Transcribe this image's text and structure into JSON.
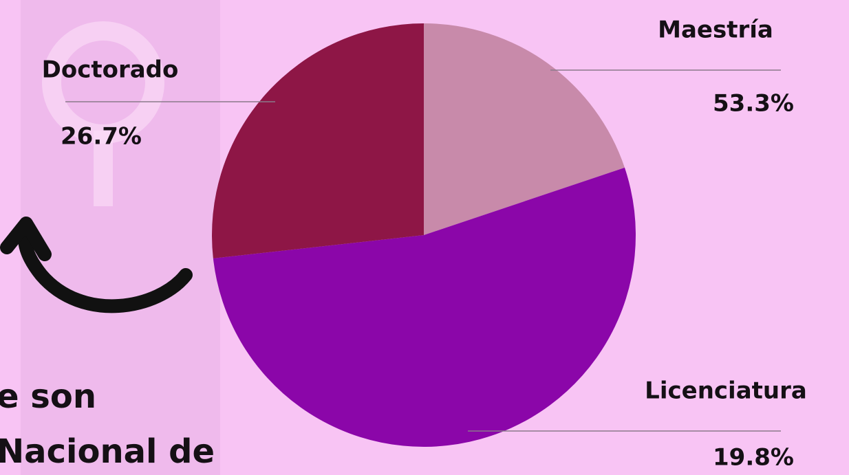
{
  "chart_data": {
    "type": "pie",
    "categories": [
      "Maestría",
      "Licenciatura",
      "Doctorado"
    ],
    "values": [
      19.8,
      53.3,
      26.7
    ],
    "value_labels": [
      "19.8%",
      "53.3%",
      "26.7%"
    ],
    "colors": [
      "#c88aaa",
      "#8b06a9",
      "#8e1646"
    ]
  },
  "caption_fragments": [
    "e son",
    "Nacional de"
  ]
}
